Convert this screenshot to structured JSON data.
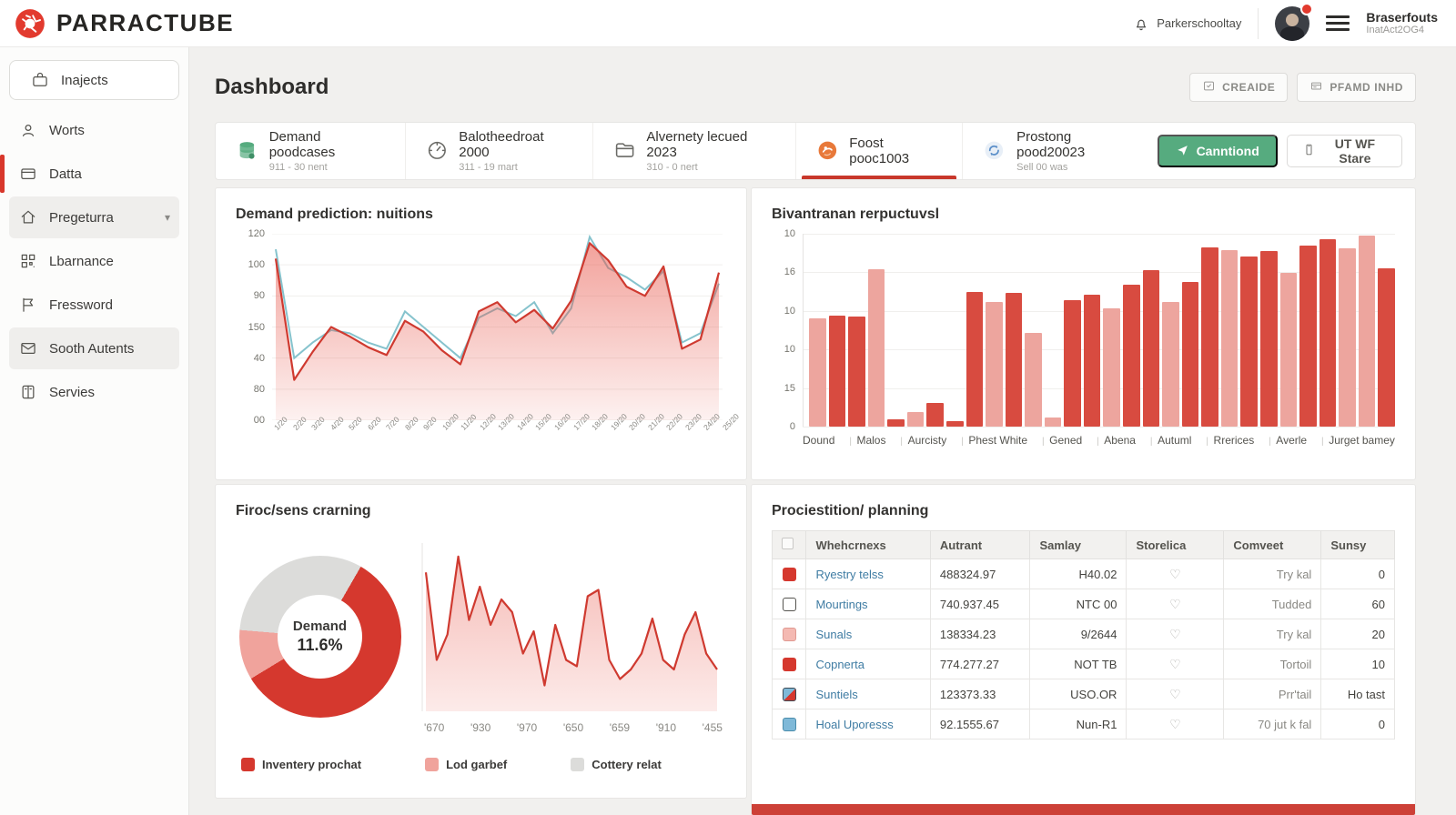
{
  "header": {
    "brand": "PARRACTUBE",
    "notifications_label": "Parkerschooltay",
    "user": {
      "name": "Braserfouts",
      "meta": "InatAct2OG4"
    }
  },
  "sidebar": {
    "items": [
      {
        "label": "Inajects",
        "icon": "briefcase-icon",
        "style": "card"
      },
      {
        "label": "Worts",
        "icon": "person-icon",
        "style": ""
      },
      {
        "label": "Datta",
        "icon": "card-icon",
        "style": "indicator"
      },
      {
        "label": "Pregeturra",
        "icon": "home-icon",
        "style": "selected",
        "chevron": true
      },
      {
        "label": "Lbarnance",
        "icon": "qr-icon",
        "style": ""
      },
      {
        "label": "Fressword",
        "icon": "flag-icon",
        "style": ""
      },
      {
        "label": "Sooth Autents",
        "icon": "mail-icon",
        "style": "selected"
      },
      {
        "label": "Servies",
        "icon": "book-icon",
        "style": ""
      }
    ]
  },
  "page": {
    "title": "Dashboard",
    "actions": [
      {
        "label": "CREAIDE",
        "icon": "create-icon"
      },
      {
        "label": "PFAMD INHD",
        "icon": "keypad-icon"
      }
    ]
  },
  "tabs": [
    {
      "title": "Demand poodcases",
      "subtitle": "911 - 30 nent",
      "icon": "database-icon",
      "active": false
    },
    {
      "title": "Balotheedroat 2000",
      "subtitle": "311 - 19 mart",
      "icon": "gauge-icon",
      "active": false
    },
    {
      "title": "Alvernety lecued 2023",
      "subtitle": "310 - 0 nert",
      "icon": "folder-icon",
      "active": false
    },
    {
      "title": "Foost pooc1003",
      "subtitle": "",
      "icon": "orange-logo-icon",
      "active": true
    },
    {
      "title": "Prostong pood20023",
      "subtitle": "Sell 00 was",
      "icon": "sync-icon",
      "active": false
    }
  ],
  "tab_actions": [
    {
      "label": "Canntiond",
      "icon": "send-icon",
      "variant": "primary"
    },
    {
      "label": "UT WF Stare",
      "icon": "clipboard-icon",
      "variant": "secondary"
    }
  ],
  "chart_data": [
    {
      "id": "demand-area",
      "type": "area",
      "title": "Demand prediction: nuitions",
      "ylim": [
        0,
        120
      ],
      "ytick_labels": [
        "120",
        "100",
        "90",
        "150",
        "40",
        "80",
        "00"
      ],
      "grid": true,
      "legend_position": "none",
      "x": [
        "1/20",
        "2/20",
        "3/20",
        "4/20",
        "5/20",
        "6/20",
        "7/20",
        "8/20",
        "9/20",
        "10/20",
        "11/20",
        "12/20",
        "13/20",
        "14/20",
        "15/20",
        "16/20",
        "17/20",
        "18/20",
        "19/20",
        "20/20",
        "21/20",
        "22/20",
        "23/20",
        "24/20",
        "25/20"
      ],
      "series": [
        {
          "name": "forecast",
          "color": "#86c3cd",
          "values": [
            110,
            40,
            50,
            58,
            56,
            50,
            46,
            70,
            60,
            50,
            40,
            66,
            72,
            67,
            76,
            56,
            72,
            118,
            98,
            92,
            84,
            96,
            50,
            56,
            88
          ]
        },
        {
          "name": "actual",
          "color": "#cf3a30",
          "fill": "#e8564a",
          "values": [
            104,
            26,
            44,
            60,
            54,
            47,
            42,
            64,
            57,
            45,
            36,
            70,
            76,
            63,
            71,
            59,
            77,
            114,
            103,
            86,
            80,
            99,
            46,
            52,
            95
          ]
        }
      ]
    },
    {
      "id": "products-bar",
      "type": "bar",
      "title": "Bivantranan rerpuctuvsl",
      "ylim": [
        0,
        20
      ],
      "ytick_labels": [
        "10",
        "16",
        "10",
        "10",
        "15",
        "0"
      ],
      "grid": true,
      "categories": [
        "Dound",
        "Malos",
        "Aurcisty",
        "Phest White",
        "Gened",
        "Abena",
        "Autuml",
        "Rrerices",
        "Averle",
        "Jurget bamey"
      ],
      "bar_colors": {
        "r": "#d84b40",
        "p": "#eda59e"
      },
      "bars": [
        {
          "v": 11.2,
          "k": "p"
        },
        {
          "v": 11.5,
          "k": "r"
        },
        {
          "v": 11.4,
          "k": "r"
        },
        {
          "v": 16.3,
          "k": "p"
        },
        {
          "v": 0.8,
          "k": "r"
        },
        {
          "v": 1.5,
          "k": "p"
        },
        {
          "v": 2.5,
          "k": "r"
        },
        {
          "v": 0.6,
          "k": "r"
        },
        {
          "v": 14.0,
          "k": "r"
        },
        {
          "v": 12.9,
          "k": "p"
        },
        {
          "v": 13.9,
          "k": "r"
        },
        {
          "v": 9.7,
          "k": "p"
        },
        {
          "v": 0.9,
          "k": "p"
        },
        {
          "v": 13.1,
          "k": "r"
        },
        {
          "v": 13.7,
          "k": "r"
        },
        {
          "v": 12.3,
          "k": "p"
        },
        {
          "v": 14.7,
          "k": "r"
        },
        {
          "v": 16.2,
          "k": "r"
        },
        {
          "v": 12.9,
          "k": "p"
        },
        {
          "v": 15.0,
          "k": "r"
        },
        {
          "v": 18.6,
          "k": "r"
        },
        {
          "v": 18.3,
          "k": "p"
        },
        {
          "v": 17.6,
          "k": "r"
        },
        {
          "v": 18.2,
          "k": "r"
        },
        {
          "v": 15.9,
          "k": "p"
        },
        {
          "v": 18.8,
          "k": "r"
        },
        {
          "v": 19.4,
          "k": "r"
        },
        {
          "v": 18.5,
          "k": "p"
        },
        {
          "v": 19.8,
          "k": "p"
        },
        {
          "v": 16.4,
          "k": "r"
        }
      ]
    },
    {
      "id": "firoc-donut",
      "type": "pie",
      "title": "Firoc/sens crarning",
      "center_label": "Demand",
      "center_value": "11.6%",
      "slices": [
        {
          "name": "Inventery prochat",
          "color": "#d5382e",
          "pct": 58
        },
        {
          "name": "Lod garbef",
          "color": "#f0a39c",
          "pct": 10
        },
        {
          "name": "Cottery relat",
          "color": "#dcdcda",
          "pct": 32
        }
      ],
      "legend_position": "bottom"
    },
    {
      "id": "firoc-line",
      "type": "line",
      "title": "",
      "color": "#cf3a30",
      "fill": "#e8564a",
      "ylim": [
        0,
        100
      ],
      "x_labels": [
        "'670",
        "'930",
        "'970",
        "'650",
        "'659",
        "'910",
        "'455"
      ],
      "values": [
        85,
        30,
        46,
        95,
        55,
        76,
        52,
        68,
        60,
        34,
        48,
        14,
        52,
        30,
        26,
        70,
        74,
        30,
        18,
        24,
        34,
        56,
        30,
        24,
        46,
        60,
        34,
        24
      ]
    }
  ],
  "table": {
    "title": "Prociestition/ planning",
    "headers": [
      "Whehcrnexs",
      "Autrant",
      "Samlay",
      "Storelica",
      "Comveet",
      "Sunsy"
    ],
    "rows": [
      {
        "swatch": "red",
        "name": "Ryestry telss",
        "autrant": "488324.97",
        "samlay": "H40.02",
        "storelica": "heart-icon",
        "comveet": "Try kal",
        "sunsy": "0"
      },
      {
        "swatch": "white",
        "name": "Mourtings",
        "autrant": "740.937.45",
        "samlay": "NTC 00",
        "storelica": "heart-icon",
        "comveet": "Tudded",
        "sunsy": "60"
      },
      {
        "swatch": "pink",
        "name": "Sunals",
        "autrant": "138334.23",
        "samlay": "9/2644",
        "storelica": "heart-icon",
        "comveet": "Try kal",
        "sunsy": "20"
      },
      {
        "swatch": "red",
        "name": "Copnerta",
        "autrant": "774.277.27",
        "samlay": "NOT TB",
        "storelica": "heart-icon",
        "comveet": "Tortoil",
        "sunsy": "10"
      },
      {
        "swatch": "image",
        "name": "Suntiels",
        "autrant": "123373.33",
        "samlay": "USO.OR",
        "storelica": "heart-icon",
        "comveet": "Prr'tail",
        "sunsy": "Ho tast"
      },
      {
        "swatch": "blue",
        "name": "Hoal Uporesss",
        "autrant": "92.1555.67",
        "samlay": "Nun-R1",
        "storelica": "heart-icon",
        "comveet": "70 jut k fal",
        "sunsy": "0"
      }
    ]
  },
  "colors": {
    "accent_red": "#d5382e",
    "accent_pink": "#eda59e",
    "accent_green": "#56ab7f",
    "accent_gray": "#dcdcda",
    "link_blue": "#3f7ca3"
  }
}
